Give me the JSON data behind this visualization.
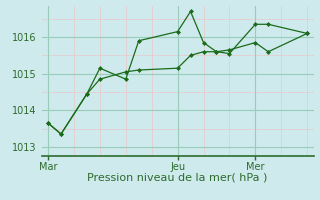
{
  "title": "Pression niveau de la mer( hPa )",
  "background_color": "#ceeaec",
  "grid_color_major": "#99ccbb",
  "grid_color_minor": "#e8c8c8",
  "line_color": "#1a6b1a",
  "marker_color": "#1a6b1a",
  "ylim": [
    1012.75,
    1016.85
  ],
  "yticks": [
    1013,
    1014,
    1015,
    1016
  ],
  "xtick_labels": [
    "Mar",
    "Jeu",
    "Mer"
  ],
  "xtick_positions": [
    0,
    10,
    16
  ],
  "vline_positions": [
    0,
    10,
    16
  ],
  "x_minor_grid": [
    0,
    2,
    4,
    6,
    8,
    10,
    12,
    14,
    16,
    18,
    20
  ],
  "series1_x": [
    0,
    1,
    3,
    4,
    6,
    7,
    10,
    11,
    12,
    13,
    14,
    16,
    17,
    20
  ],
  "series1_y": [
    1013.65,
    1013.35,
    1014.45,
    1015.15,
    1014.85,
    1015.9,
    1016.15,
    1016.7,
    1015.85,
    1015.6,
    1015.55,
    1016.35,
    1016.35,
    1016.1
  ],
  "series2_x": [
    0,
    1,
    3,
    4,
    6,
    7,
    10,
    11,
    12,
    13,
    14,
    16,
    17,
    20
  ],
  "series2_y": [
    1013.65,
    1013.35,
    1014.45,
    1014.85,
    1015.05,
    1015.1,
    1015.15,
    1015.5,
    1015.6,
    1015.6,
    1015.65,
    1015.85,
    1015.6,
    1016.1
  ],
  "xlabel_fontsize": 8,
  "tick_fontsize": 7,
  "axis_color": "#2d6b2d",
  "figsize": [
    3.2,
    2.0
  ],
  "dpi": 100
}
